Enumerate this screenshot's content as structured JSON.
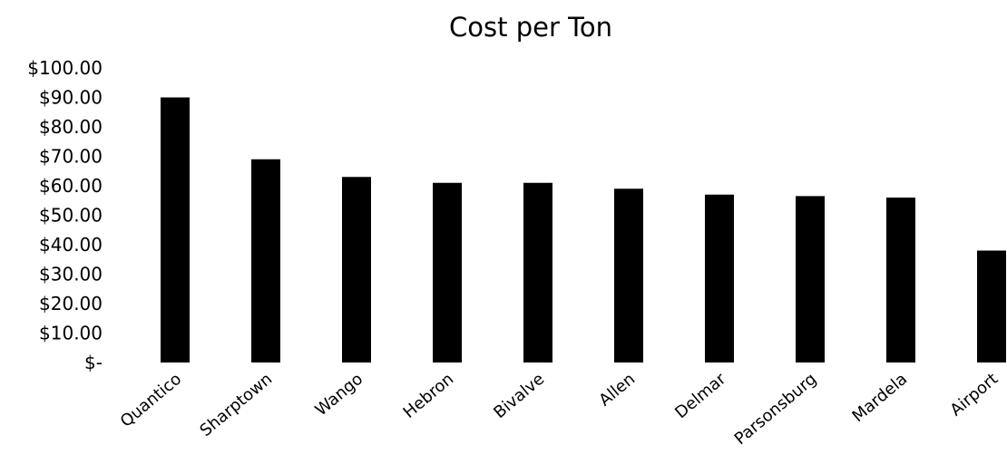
{
  "chart_data": {
    "type": "bar",
    "title": "Cost per Ton",
    "xlabel": "",
    "ylabel": "",
    "categories": [
      "Quantico",
      "Sharptown",
      "Wango",
      "Hebron",
      "Bivalve",
      "Allen",
      "Delmar",
      "Parsonsburg",
      "Mardela",
      "Airport"
    ],
    "values": [
      90,
      69,
      63,
      61,
      61,
      59,
      57,
      56.5,
      56,
      38
    ],
    "ylim": [
      0,
      100
    ],
    "y_ticks": [
      0,
      10,
      20,
      30,
      40,
      50,
      60,
      70,
      80,
      90,
      100
    ],
    "y_tick_labels": [
      "$-",
      "$10.00",
      "$20.00",
      "$30.00",
      "$40.00",
      "$50.00",
      "$60.00",
      "$70.00",
      "$80.00",
      "$90.00",
      "$100.00"
    ],
    "grid": false,
    "legend": "none",
    "bar_color": "#000000"
  }
}
